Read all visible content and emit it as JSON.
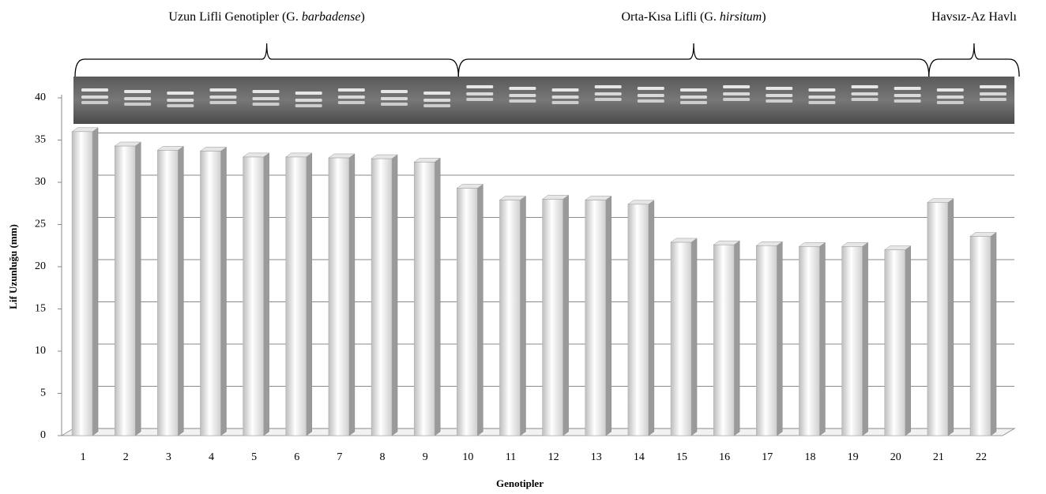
{
  "chart_data": {
    "type": "bar",
    "y_label": "Lif Uzunluğu (mm)",
    "x_label": "Genotipler",
    "categories": [
      "1",
      "2",
      "3",
      "4",
      "5",
      "6",
      "7",
      "8",
      "9",
      "10",
      "11",
      "12",
      "13",
      "14",
      "15",
      "16",
      "17",
      "18",
      "19",
      "20",
      "21",
      "22"
    ],
    "values": [
      36.0,
      34.3,
      33.8,
      33.7,
      33.0,
      33.0,
      32.9,
      32.8,
      32.4,
      29.3,
      27.9,
      28.0,
      27.9,
      27.4,
      22.9,
      22.6,
      22.5,
      22.4,
      22.4,
      22.0,
      27.6,
      23.6
    ],
    "color": "#c8c8c8",
    "ylim": [
      0,
      40
    ],
    "yticks": [
      0,
      5,
      10,
      15,
      20,
      25,
      30,
      35,
      40
    ],
    "grid": true,
    "groups": [
      {
        "label_prefix": "Uzun Lifli Genotipler (G.",
        "label_italic": "barbadense",
        "label_suffix": ")",
        "range": [
          "1",
          "9"
        ]
      },
      {
        "label_prefix": "Orta-Kısa Lifli (G.",
        "label_italic": "hirsitum",
        "label_suffix": ")",
        "range": [
          "10",
          "20"
        ]
      },
      {
        "label_prefix": "Havsız-Az Havlı",
        "range": [
          "21",
          "22"
        ]
      }
    ]
  }
}
